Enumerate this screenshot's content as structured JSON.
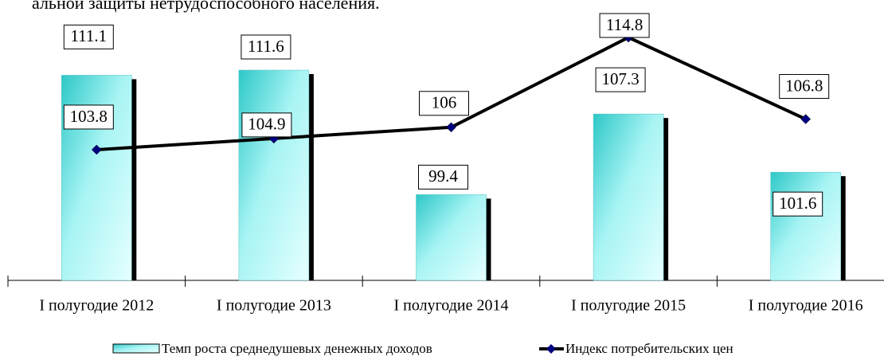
{
  "chart_data": {
    "type": "bar_line",
    "title": "альной защиты нетрудоспособного населения.",
    "categories": [
      "I полугодие 2012",
      "I полугодие 2013",
      "I полугодие 2014",
      "I полугодие 2015",
      "I полугодие 2016"
    ],
    "ylim": [
      91,
      118
    ],
    "series": [
      {
        "name": "Темп роста среднедушевых денежных доходов",
        "type": "bar",
        "color": "#33cccc",
        "values": [
          111.1,
          111.6,
          99.4,
          107.3,
          101.6
        ]
      },
      {
        "name": "Индекс потребительских цен",
        "type": "line",
        "color": "#000000",
        "marker_color": "#000080",
        "values": [
          103.8,
          104.9,
          106.0,
          114.8,
          106.8
        ]
      }
    ]
  }
}
